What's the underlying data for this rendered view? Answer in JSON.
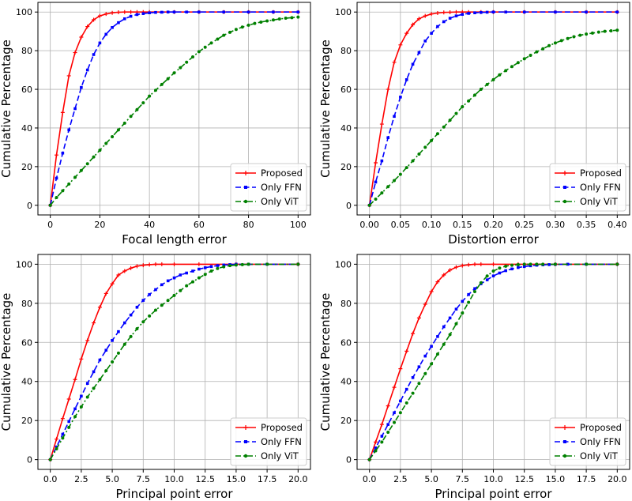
{
  "colors": {
    "proposed": "#ff0000",
    "only_ffn": "#0000ff",
    "only_vit": "#008000",
    "grid": "#b0b0b0",
    "axes": "#000000"
  },
  "chart_data": [
    {
      "type": "line",
      "xlabel": "Focal length error",
      "ylabel": "Cumulative Percentage",
      "xlim": [
        -5,
        105
      ],
      "ylim": [
        -5,
        105
      ],
      "xticks": [
        0,
        20,
        40,
        60,
        80,
        100
      ],
      "xtick_labels": [
        "0",
        "20",
        "40",
        "60",
        "80",
        "100"
      ],
      "yticks": [
        0,
        20,
        40,
        60,
        80,
        100
      ],
      "ytick_labels": [
        "0",
        "20",
        "40",
        "60",
        "80",
        "100"
      ],
      "grid": true,
      "legend_position": "lower-right",
      "series": [
        {
          "name": "Proposed",
          "style": "solid",
          "marker": "+",
          "color_key": "proposed",
          "x": [
            0,
            2.5,
            5,
            7.5,
            10,
            12.5,
            15,
            17.5,
            20,
            22.5,
            25,
            27.5,
            30,
            32.5,
            35,
            37.5,
            40,
            50,
            60,
            70,
            80,
            90,
            100
          ],
          "y": [
            0,
            26,
            48,
            67,
            79,
            87,
            92.5,
            96,
            98,
            99,
            99.6,
            99.9,
            100,
            100,
            100,
            100,
            100,
            100,
            100,
            100,
            100,
            100,
            100
          ]
        },
        {
          "name": "Only FFN",
          "style": "dashed",
          "marker": "s",
          "color_key": "only_ffn",
          "x": [
            0,
            2.5,
            5,
            7.5,
            10,
            12.5,
            15,
            17.5,
            20,
            22.5,
            25,
            27.5,
            30,
            32.5,
            35,
            37.5,
            40,
            42.5,
            45,
            47.5,
            50,
            55,
            60,
            70,
            80,
            90,
            100
          ],
          "y": [
            0,
            14,
            27,
            39,
            50,
            61,
            70,
            78,
            84,
            88.5,
            92,
            94.5,
            96.5,
            97.8,
            98.7,
            99.2,
            99.6,
            99.8,
            99.9,
            100,
            100,
            100,
            100,
            100,
            100,
            100,
            100
          ]
        },
        {
          "name": "Only ViT",
          "style": "dashdot",
          "marker": "o",
          "color_key": "only_vit",
          "x": [
            0,
            2.5,
            5,
            7.5,
            10,
            12.5,
            15,
            17.5,
            20,
            22.5,
            25,
            27.5,
            30,
            32.5,
            35,
            37.5,
            40,
            42.5,
            45,
            47.5,
            50,
            52.5,
            55,
            57.5,
            60,
            62.5,
            65,
            67.5,
            70,
            72.5,
            75,
            77.5,
            80,
            82.5,
            85,
            87.5,
            90,
            92.5,
            95,
            97.5,
            100
          ],
          "y": [
            0,
            4,
            7.5,
            11,
            14.5,
            18,
            21.5,
            25,
            28.5,
            32,
            35.5,
            39,
            42.5,
            46,
            49.5,
            53,
            56.5,
            59.5,
            62.5,
            65.5,
            68.5,
            71.2,
            74,
            76.8,
            79.5,
            81.8,
            84,
            86,
            88,
            89.5,
            91,
            92.2,
            93.2,
            94.1,
            94.8,
            95.4,
            95.9,
            96.4,
            96.8,
            97.1,
            97.4
          ]
        }
      ]
    },
    {
      "type": "line",
      "xlabel": "Distortion error",
      "ylabel": "Cumulative Percentage",
      "xlim": [
        -0.02,
        0.42
      ],
      "ylim": [
        -5,
        105
      ],
      "xticks": [
        0,
        0.05,
        0.1,
        0.15,
        0.2,
        0.25,
        0.3,
        0.35,
        0.4
      ],
      "xtick_labels": [
        "0.00",
        "0.05",
        "0.10",
        "0.15",
        "0.20",
        "0.25",
        "0.30",
        "0.35",
        "0.40"
      ],
      "yticks": [
        0,
        20,
        40,
        60,
        80,
        100
      ],
      "ytick_labels": [
        "0",
        "20",
        "40",
        "60",
        "80",
        "100"
      ],
      "grid": true,
      "legend_position": "lower-right",
      "series": [
        {
          "name": "Proposed",
          "style": "solid",
          "marker": "+",
          "color_key": "proposed",
          "x": [
            0,
            0.01,
            0.02,
            0.03,
            0.04,
            0.05,
            0.06,
            0.07,
            0.08,
            0.09,
            0.1,
            0.11,
            0.12,
            0.13,
            0.14,
            0.15,
            0.16,
            0.18,
            0.2,
            0.25,
            0.3,
            0.35,
            0.4
          ],
          "y": [
            0,
            22,
            42,
            60,
            74,
            83,
            89,
            93.5,
            96.5,
            98,
            99,
            99.5,
            99.8,
            99.9,
            100,
            100,
            100,
            100,
            100,
            100,
            100,
            100,
            100
          ]
        },
        {
          "name": "Only FFN",
          "style": "dashed",
          "marker": "s",
          "color_key": "only_ffn",
          "x": [
            0,
            0.01,
            0.02,
            0.03,
            0.04,
            0.05,
            0.06,
            0.07,
            0.08,
            0.09,
            0.1,
            0.11,
            0.12,
            0.13,
            0.14,
            0.15,
            0.16,
            0.17,
            0.18,
            0.19,
            0.2,
            0.22,
            0.25,
            0.3,
            0.35,
            0.4
          ],
          "y": [
            0,
            12,
            23,
            35,
            46,
            56,
            65,
            73,
            79,
            85,
            89,
            92.5,
            95,
            96.8,
            98,
            98.8,
            99.3,
            99.6,
            99.8,
            99.9,
            100,
            100,
            100,
            100,
            100,
            100
          ]
        },
        {
          "name": "Only ViT",
          "style": "dashdot",
          "marker": "o",
          "color_key": "only_vit",
          "x": [
            0,
            0.01,
            0.02,
            0.03,
            0.04,
            0.05,
            0.06,
            0.07,
            0.08,
            0.09,
            0.1,
            0.11,
            0.12,
            0.13,
            0.14,
            0.15,
            0.16,
            0.17,
            0.18,
            0.19,
            0.2,
            0.21,
            0.22,
            0.23,
            0.24,
            0.25,
            0.26,
            0.27,
            0.28,
            0.29,
            0.3,
            0.31,
            0.32,
            0.33,
            0.34,
            0.35,
            0.36,
            0.37,
            0.38,
            0.39,
            0.4
          ],
          "y": [
            0,
            3.2,
            6.4,
            9.6,
            12.8,
            16,
            19.5,
            23,
            26.5,
            30,
            33.5,
            37,
            40.5,
            44,
            47.5,
            51,
            54,
            57,
            60,
            62.5,
            65,
            67.5,
            69.7,
            71.8,
            73.8,
            75.8,
            77.6,
            79.4,
            81,
            82.6,
            84,
            85.2,
            86.3,
            87.2,
            88,
            88.6,
            89.1,
            89.6,
            90,
            90.3,
            90.6
          ]
        }
      ]
    },
    {
      "type": "line",
      "xlabel": "Principal point error",
      "ylabel": "Cumulative Percentage",
      "xlim": [
        -1,
        21
      ],
      "ylim": [
        -5,
        105
      ],
      "xticks": [
        0,
        2.5,
        5,
        7.5,
        10,
        12.5,
        15,
        17.5,
        20
      ],
      "xtick_labels": [
        "0.0",
        "2.5",
        "5.0",
        "7.5",
        "10.0",
        "12.5",
        "15.0",
        "17.5",
        "20.0"
      ],
      "yticks": [
        0,
        20,
        40,
        60,
        80,
        100
      ],
      "ytick_labels": [
        "0",
        "20",
        "40",
        "60",
        "80",
        "100"
      ],
      "grid": true,
      "legend_position": "lower-right",
      "series": [
        {
          "name": "Proposed",
          "style": "solid",
          "marker": "+",
          "color_key": "proposed",
          "x": [
            0,
            0.5,
            1,
            1.5,
            2,
            2.5,
            3,
            3.5,
            4,
            4.5,
            5,
            5.5,
            6,
            6.5,
            7,
            7.5,
            8,
            8.5,
            9,
            10,
            12,
            15,
            20
          ],
          "y": [
            0,
            10.5,
            21,
            31,
            41,
            51.5,
            61,
            70,
            78,
            85,
            90,
            94.5,
            96.5,
            98,
            99,
            99.5,
            99.8,
            100,
            100,
            100,
            100,
            100,
            100
          ]
        },
        {
          "name": "Only FFN",
          "style": "dashed",
          "marker": "s",
          "color_key": "only_ffn",
          "x": [
            0,
            0.5,
            1,
            1.5,
            2,
            2.5,
            3,
            3.5,
            4,
            4.5,
            5,
            5.5,
            6,
            6.5,
            7,
            7.5,
            8,
            8.5,
            9,
            9.5,
            10,
            10.5,
            11,
            11.5,
            12,
            12.5,
            13,
            13.5,
            14,
            14.5,
            15,
            16,
            17.5,
            20
          ],
          "y": [
            0,
            6.5,
            13,
            19.5,
            26,
            32.5,
            39,
            45,
            51,
            56,
            61,
            65.5,
            70,
            74,
            78,
            81.5,
            84.5,
            87,
            89.5,
            91.5,
            93,
            94.5,
            95.5,
            96.5,
            97.5,
            98.2,
            98.8,
            99.3,
            99.6,
            99.8,
            100,
            100,
            100,
            100
          ]
        },
        {
          "name": "Only ViT",
          "style": "dashdot",
          "marker": "o",
          "color_key": "only_vit",
          "x": [
            0,
            0.5,
            1,
            1.5,
            2,
            2.5,
            3,
            3.5,
            4,
            4.5,
            5,
            5.5,
            6,
            6.5,
            7,
            7.5,
            8,
            8.5,
            9,
            9.5,
            10,
            10.5,
            11,
            11.5,
            12,
            12.5,
            13,
            13.5,
            14,
            14.5,
            15,
            15.5,
            16,
            17.5,
            20
          ],
          "y": [
            0,
            5.5,
            11,
            16.5,
            22,
            27,
            32,
            36.5,
            41,
            45.5,
            50,
            54.5,
            59,
            63,
            67,
            70.5,
            73.5,
            76.5,
            79,
            81.5,
            84,
            86.5,
            89,
            91,
            93,
            94.8,
            96.5,
            97.8,
            98.7,
            99.3,
            99.6,
            99.8,
            100,
            100,
            100
          ]
        }
      ]
    },
    {
      "type": "line",
      "xlabel": "Principal point error",
      "ylabel": "Cumulative Percentage",
      "xlim": [
        -1,
        21
      ],
      "ylim": [
        -5,
        105
      ],
      "xticks": [
        0,
        2.5,
        5,
        7.5,
        10,
        12.5,
        15,
        17.5,
        20
      ],
      "xtick_labels": [
        "0.0",
        "2.5",
        "5.0",
        "7.5",
        "10.0",
        "12.5",
        "15.0",
        "17.5",
        "20.0"
      ],
      "yticks": [
        0,
        20,
        40,
        60,
        80,
        100
      ],
      "ytick_labels": [
        "0",
        "20",
        "40",
        "60",
        "80",
        "100"
      ],
      "grid": true,
      "legend_position": "lower-right",
      "series": [
        {
          "name": "Proposed",
          "style": "solid",
          "marker": "+",
          "color_key": "proposed",
          "x": [
            0,
            0.5,
            1,
            1.5,
            2,
            2.5,
            3,
            3.5,
            4,
            4.5,
            5,
            5.5,
            6,
            6.5,
            7,
            7.5,
            8,
            8.5,
            9,
            10,
            12,
            15,
            20
          ],
          "y": [
            0,
            9,
            18,
            27.5,
            37,
            46.5,
            55.5,
            64.5,
            72.5,
            79.5,
            86,
            91,
            94.5,
            97,
            98.5,
            99.3,
            99.7,
            100,
            100,
            100,
            100,
            100,
            100
          ]
        },
        {
          "name": "Only FFN",
          "style": "dashed",
          "marker": "s",
          "color_key": "only_ffn",
          "x": [
            0,
            0.5,
            1,
            1.5,
            2,
            2.5,
            3,
            3.5,
            4,
            4.5,
            5,
            5.5,
            6,
            6.5,
            7,
            7.5,
            8,
            8.5,
            9,
            9.5,
            10,
            10.5,
            11,
            11.5,
            12,
            12.5,
            13,
            13.5,
            14,
            14.5,
            15,
            16,
            17.5,
            20
          ],
          "y": [
            0,
            6,
            12,
            18,
            24,
            30,
            36,
            42,
            47.5,
            53,
            58,
            63,
            68,
            72.5,
            77,
            81,
            84.5,
            87.5,
            90,
            92,
            94,
            95.5,
            96.7,
            97.6,
            98.3,
            98.8,
            99.2,
            99.5,
            99.7,
            99.8,
            99.9,
            100,
            100,
            100
          ]
        },
        {
          "name": "Only ViT",
          "style": "dashdot",
          "marker": "o",
          "color_key": "only_vit",
          "x": [
            0,
            0.5,
            1,
            1.5,
            2,
            2.5,
            3,
            3.5,
            4,
            4.5,
            5,
            5.5,
            6,
            6.5,
            7,
            7.5,
            8,
            8.5,
            9,
            9.5,
            10,
            10.5,
            11,
            11.5,
            12,
            12.5,
            13,
            13.5,
            14,
            15,
            17.5,
            20
          ],
          "y": [
            0,
            4.5,
            9,
            14,
            19,
            24,
            29,
            34,
            39,
            44,
            49,
            54,
            59,
            64,
            69.5,
            75,
            80.5,
            86,
            90.5,
            94,
            96.5,
            98,
            99,
            99.5,
            99.8,
            100,
            100,
            100,
            100,
            100,
            100,
            100
          ]
        }
      ]
    }
  ]
}
